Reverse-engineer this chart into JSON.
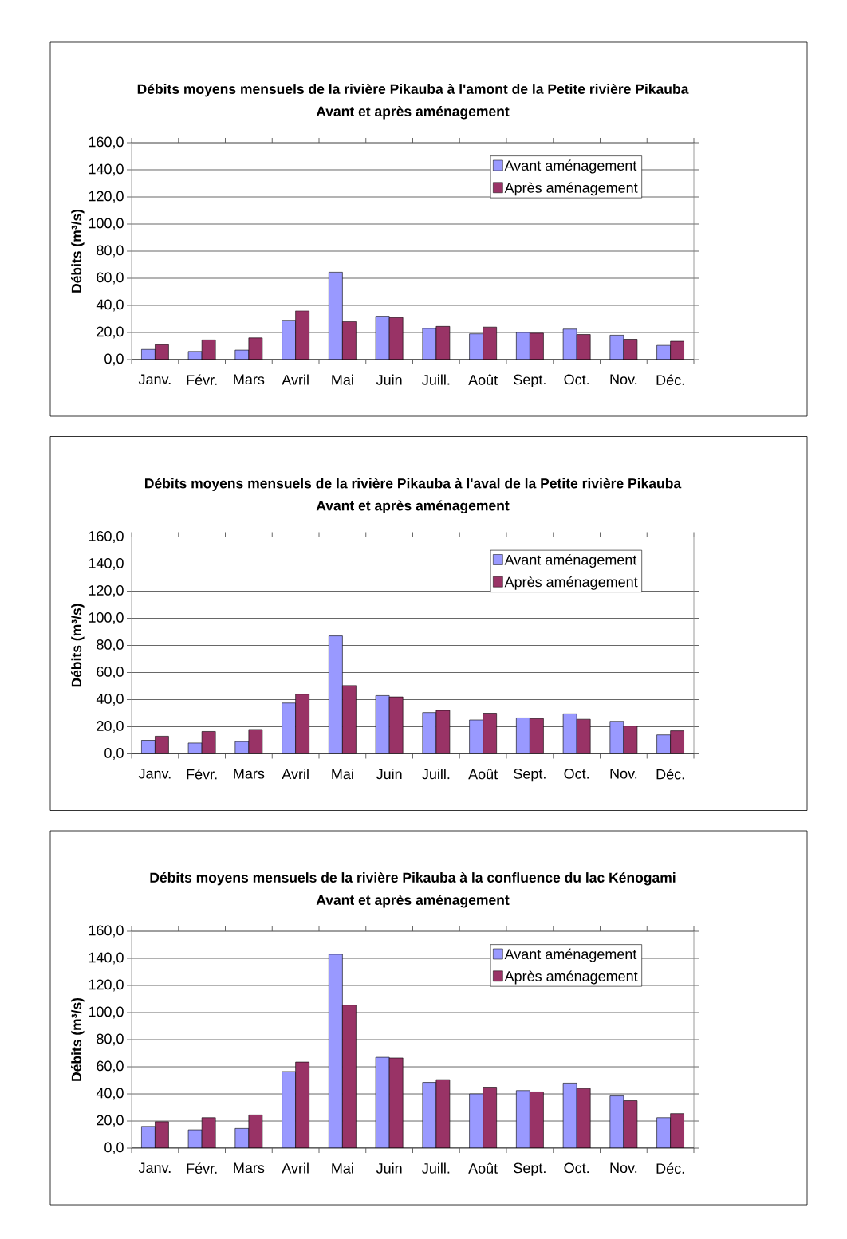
{
  "chart_data": [
    {
      "type": "bar",
      "title": "Débits moyens mensuels de la rivière Pikauba à l'amont de la Petite rivière Pikauba",
      "subtitle": "Avant et après aménagement",
      "ylabel": "Débits (m³/s)",
      "categories": [
        "Janv.",
        "Févr.",
        "Mars",
        "Avril",
        "Mai",
        "Juin",
        "Juill.",
        "Août",
        "Sept.",
        "Oct.",
        "Nov.",
        "Déc."
      ],
      "series": [
        {
          "name": "Avant aménagement",
          "color": "#9999ff",
          "values": [
            7.5,
            6,
            7,
            29,
            64.5,
            32,
            23,
            19,
            20,
            22.5,
            18,
            10.5
          ]
        },
        {
          "name": "Après aménagement",
          "color": "#993366",
          "values": [
            11,
            14.5,
            16,
            36,
            28,
            31,
            24.5,
            24,
            19.5,
            18.5,
            15,
            13.5
          ]
        }
      ],
      "ylim": [
        0,
        160
      ],
      "yticks": [
        {
          "value": 0,
          "label": "0,0"
        },
        {
          "value": 20,
          "label": "20,0"
        },
        {
          "value": 40,
          "label": "40,0"
        },
        {
          "value": 60,
          "label": "60,0"
        },
        {
          "value": 80,
          "label": "80,0"
        },
        {
          "value": 100,
          "label": "100,0"
        },
        {
          "value": 120,
          "label": "120,0"
        },
        {
          "value": 140,
          "label": "140,0"
        },
        {
          "value": 160,
          "label": "160,0"
        }
      ],
      "grid": "y",
      "legend": "top right"
    },
    {
      "type": "bar",
      "title": "Débits moyens mensuels de la rivière Pikauba à l'aval de la Petite rivière Pikauba",
      "subtitle": "Avant et après aménagement",
      "ylabel": "Débits (m³/s)",
      "categories": [
        "Janv.",
        "Févr.",
        "Mars",
        "Avril",
        "Mai",
        "Juin",
        "Juill.",
        "Août",
        "Sept.",
        "Oct.",
        "Nov.",
        "Déc."
      ],
      "series": [
        {
          "name": "Avant aménagement",
          "color": "#9999ff",
          "values": [
            10,
            8,
            9,
            37.5,
            87,
            43,
            30.5,
            25,
            26.5,
            29.5,
            24,
            14
          ]
        },
        {
          "name": "Après aménagement",
          "color": "#993366",
          "values": [
            13,
            16.5,
            18,
            44,
            50.5,
            42,
            32,
            30,
            26,
            25.5,
            20.5,
            17
          ]
        }
      ],
      "ylim": [
        0,
        160
      ],
      "yticks": [
        {
          "value": 0,
          "label": "0,0"
        },
        {
          "value": 20,
          "label": "20,0"
        },
        {
          "value": 40,
          "label": "40,0"
        },
        {
          "value": 60,
          "label": "60,0"
        },
        {
          "value": 80,
          "label": "80,0"
        },
        {
          "value": 100,
          "label": "100,0"
        },
        {
          "value": 120,
          "label": "120,0"
        },
        {
          "value": 140,
          "label": "140,0"
        },
        {
          "value": 160,
          "label": "160,0"
        }
      ],
      "grid": "y",
      "legend": "top right"
    },
    {
      "type": "bar",
      "title": "Débits moyens mensuels de la rivière Pikauba à la confluence du lac Kénogami",
      "subtitle": "Avant et après aménagement",
      "ylabel": "Débits (m³/s)",
      "categories": [
        "Janv.",
        "Févr.",
        "Mars",
        "Avril",
        "Mai",
        "Juin",
        "Juill.",
        "Août",
        "Sept.",
        "Oct.",
        "Nov.",
        "Déc."
      ],
      "series": [
        {
          "name": "Avant aménagement",
          "color": "#9999ff",
          "values": [
            16,
            13.5,
            14.5,
            56.5,
            143,
            67,
            48.5,
            40,
            42.5,
            48,
            38.5,
            22.5
          ]
        },
        {
          "name": "Après aménagement",
          "color": "#993366",
          "values": [
            19.5,
            22.5,
            24.5,
            63.5,
            105.5,
            66.5,
            50.5,
            45,
            41.5,
            44,
            35,
            25.5
          ]
        }
      ],
      "ylim": [
        0,
        160
      ],
      "yticks": [
        {
          "value": 0,
          "label": "0,0"
        },
        {
          "value": 20,
          "label": "20,0"
        },
        {
          "value": 40,
          "label": "40,0"
        },
        {
          "value": 60,
          "label": "60,0"
        },
        {
          "value": 80,
          "label": "80,0"
        },
        {
          "value": 100,
          "label": "100,0"
        },
        {
          "value": 120,
          "label": "120,0"
        },
        {
          "value": 140,
          "label": "140,0"
        },
        {
          "value": 160,
          "label": "160,0"
        }
      ],
      "grid": "y",
      "legend": "top right"
    }
  ]
}
